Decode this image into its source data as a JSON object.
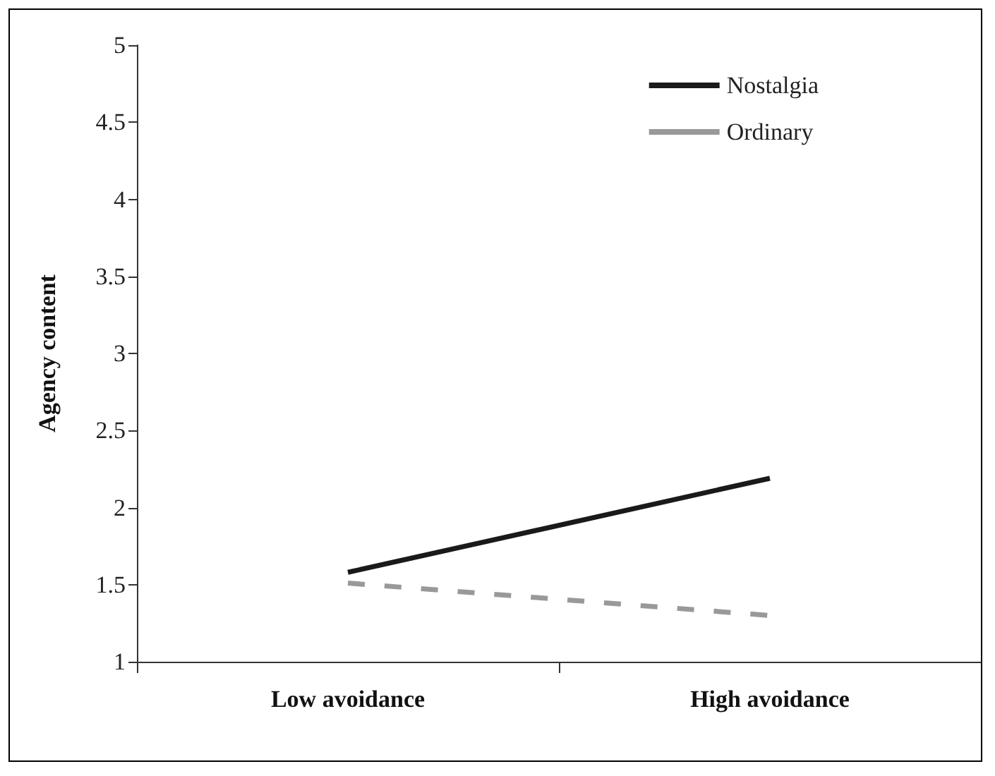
{
  "chart_data": {
    "type": "line",
    "ylabel": "Agency content",
    "categories": [
      "Low avoidance",
      "High avoidance"
    ],
    "series": [
      {
        "name": "Nostalgia",
        "color": "#1a1a1a",
        "values": [
          1.58,
          2.19
        ],
        "line_style": "solid"
      },
      {
        "name": "Ordinary",
        "color": "#999999",
        "values": [
          1.51,
          1.3
        ],
        "line_style": "dashed"
      }
    ],
    "ylim": [
      1,
      5
    ],
    "yticks": [
      1,
      1.5,
      2,
      2.5,
      3,
      3.5,
      4,
      4.5,
      5
    ],
    "grid": false,
    "legend": "top right",
    "marker": "none"
  }
}
